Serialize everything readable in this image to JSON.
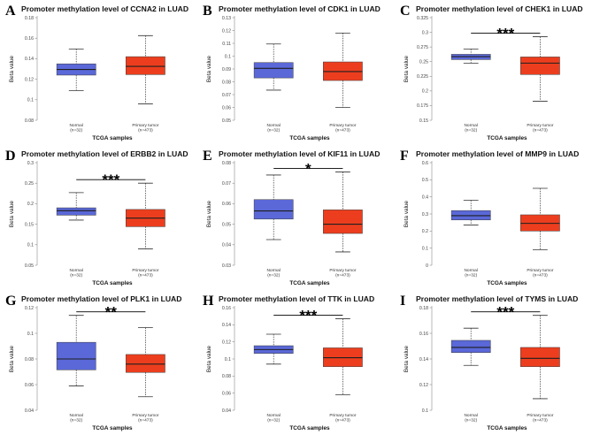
{
  "figure": {
    "colors": {
      "normal": "#5a68d8",
      "tumor": "#ec3e1e",
      "median": "#1f1f1f",
      "whisker": "#333333",
      "axis": "#8a8a8a"
    }
  },
  "chart_data": [
    {
      "type": "box",
      "panel": "A",
      "title": "Promoter methylation level of CCNA2 in LUAD",
      "xlabel": "TCGA samples",
      "ylabel": "Beta value",
      "ylim": [
        0.08,
        0.18
      ],
      "yticks": [
        "0.08",
        "0.1",
        "0.12",
        "0.14",
        "0.16",
        "0.18"
      ],
      "groups": [
        {
          "name": "Normal",
          "n": "(n=32)",
          "min": 0.109,
          "q1": 0.124,
          "median": 0.1295,
          "q3": 0.135,
          "max": 0.1495
        },
        {
          "name": "Primary tumor",
          "n": "(n=473)",
          "min": 0.096,
          "q1": 0.1245,
          "median": 0.1325,
          "q3": 0.142,
          "max": 0.1625
        }
      ],
      "significance": ""
    },
    {
      "type": "box",
      "panel": "B",
      "title": "Promoter methylation level of CDK1 in LUAD",
      "xlabel": "TCGA samples",
      "ylabel": "Beta value",
      "ylim": [
        0.05,
        0.13
      ],
      "yticks": [
        "0.05",
        "0.06",
        "0.07",
        "0.08",
        "0.09",
        "0.1",
        "0.11",
        "0.12",
        "0.13"
      ],
      "groups": [
        {
          "name": "Normal",
          "n": "(n=32)",
          "min": 0.0735,
          "q1": 0.083,
          "median": 0.0905,
          "q3": 0.095,
          "max": 0.1095
        },
        {
          "name": "Primary tumor",
          "n": "(n=473)",
          "min": 0.06,
          "q1": 0.081,
          "median": 0.088,
          "q3": 0.0955,
          "max": 0.118
        }
      ],
      "significance": ""
    },
    {
      "type": "box",
      "panel": "C",
      "title": "Promoter methylation level of CHEK1 in LUAD",
      "xlabel": "TCGA samples",
      "ylabel": "Beta value",
      "ylim": [
        0.15,
        0.325
      ],
      "yticks": [
        "0.15",
        "0.175",
        "0.2",
        "0.225",
        "0.25",
        "0.275",
        "0.3",
        "0.325"
      ],
      "groups": [
        {
          "name": "Normal",
          "n": "(n=32)",
          "min": 0.2475,
          "q1": 0.2535,
          "median": 0.2585,
          "q3": 0.2625,
          "max": 0.2715
        },
        {
          "name": "Primary tumor",
          "n": "(n=473)",
          "min": 0.1825,
          "q1": 0.228,
          "median": 0.2475,
          "q3": 0.258,
          "max": 0.2925
        }
      ],
      "significance": "***"
    },
    {
      "type": "box",
      "panel": "D",
      "title": "Promoter methylation level of ERBB2 in LUAD",
      "xlabel": "TCGA samples",
      "ylabel": "Beta value",
      "ylim": [
        0.05,
        0.3
      ],
      "yticks": [
        "0.05",
        "0.1",
        "0.15",
        "0.2",
        "0.25",
        "0.3"
      ],
      "groups": [
        {
          "name": "Normal",
          "n": "(n=32)",
          "min": 0.16,
          "q1": 0.172,
          "median": 0.183,
          "q3": 0.19,
          "max": 0.227
        },
        {
          "name": "Primary tumor",
          "n": "(n=473)",
          "min": 0.09,
          "q1": 0.144,
          "median": 0.165,
          "q3": 0.186,
          "max": 0.25
        }
      ],
      "significance": "***"
    },
    {
      "type": "box",
      "panel": "E",
      "title": "Promoter methylation level of KIF11 in LUAD",
      "xlabel": "TCGA samples",
      "ylabel": "Beta value",
      "ylim": [
        0.03,
        0.08
      ],
      "yticks": [
        "0.03",
        "0.04",
        "0.05",
        "0.06",
        "0.07",
        "0.08"
      ],
      "groups": [
        {
          "name": "Normal",
          "n": "(n=32)",
          "min": 0.0425,
          "q1": 0.0525,
          "median": 0.0565,
          "q3": 0.062,
          "max": 0.074
        },
        {
          "name": "Primary tumor",
          "n": "(n=473)",
          "min": 0.0365,
          "q1": 0.0455,
          "median": 0.05,
          "q3": 0.057,
          "max": 0.0755
        }
      ],
      "significance": "*"
    },
    {
      "type": "box",
      "panel": "F",
      "title": "Promoter methylation level of MMP9 in LUAD",
      "xlabel": "TCGA samples",
      "ylabel": "Beta value",
      "ylim": [
        0,
        0.6
      ],
      "yticks": [
        "0",
        "0.1",
        "0.2",
        "0.3",
        "0.4",
        "0.5",
        "0.6"
      ],
      "groups": [
        {
          "name": "Normal",
          "n": "(n=32)",
          "min": 0.235,
          "q1": 0.265,
          "median": 0.29,
          "q3": 0.32,
          "max": 0.38
        },
        {
          "name": "Primary tumor",
          "n": "(n=473)",
          "min": 0.09,
          "q1": 0.2,
          "median": 0.245,
          "q3": 0.295,
          "max": 0.45
        }
      ],
      "significance": ""
    },
    {
      "type": "box",
      "panel": "G",
      "title": "Promoter methylation level of PLK1 in LUAD",
      "xlabel": "TCGA samples",
      "ylabel": "Beta value",
      "ylim": [
        0.04,
        0.12
      ],
      "yticks": [
        "0.04",
        "0.06",
        "0.08",
        "0.1",
        "0.12"
      ],
      "groups": [
        {
          "name": "Normal",
          "n": "(n=32)",
          "min": 0.059,
          "q1": 0.0715,
          "median": 0.08,
          "q3": 0.093,
          "max": 0.114
        },
        {
          "name": "Primary tumor",
          "n": "(n=473)",
          "min": 0.0505,
          "q1": 0.0695,
          "median": 0.076,
          "q3": 0.0835,
          "max": 0.1045
        }
      ],
      "significance": "**"
    },
    {
      "type": "box",
      "panel": "H",
      "title": "Promoter methylation level of TTK in LUAD",
      "xlabel": "TCGA samples",
      "ylabel": "Beta value",
      "ylim": [
        0.04,
        0.16
      ],
      "yticks": [
        "0.04",
        "0.06",
        "0.08",
        "0.1",
        "0.12",
        "0.14",
        "0.16"
      ],
      "groups": [
        {
          "name": "Normal",
          "n": "(n=32)",
          "min": 0.094,
          "q1": 0.1065,
          "median": 0.111,
          "q3": 0.1155,
          "max": 0.129
        },
        {
          "name": "Primary tumor",
          "n": "(n=473)",
          "min": 0.058,
          "q1": 0.091,
          "median": 0.1015,
          "q3": 0.113,
          "max": 0.147
        }
      ],
      "significance": "***"
    },
    {
      "type": "box",
      "panel": "I",
      "title": "Promoter methylation level of TYMS in LUAD",
      "xlabel": "TCGA samples",
      "ylabel": "Beta value",
      "ylim": [
        0.1,
        0.18
      ],
      "yticks": [
        "0.1",
        "0.12",
        "0.14",
        "0.16",
        "0.18"
      ],
      "groups": [
        {
          "name": "Normal",
          "n": "(n=32)",
          "min": 0.135,
          "q1": 0.145,
          "median": 0.149,
          "q3": 0.1545,
          "max": 0.164
        },
        {
          "name": "Primary tumor",
          "n": "(n=473)",
          "min": 0.109,
          "q1": 0.134,
          "median": 0.1405,
          "q3": 0.149,
          "max": 0.174
        }
      ],
      "significance": "***"
    }
  ]
}
